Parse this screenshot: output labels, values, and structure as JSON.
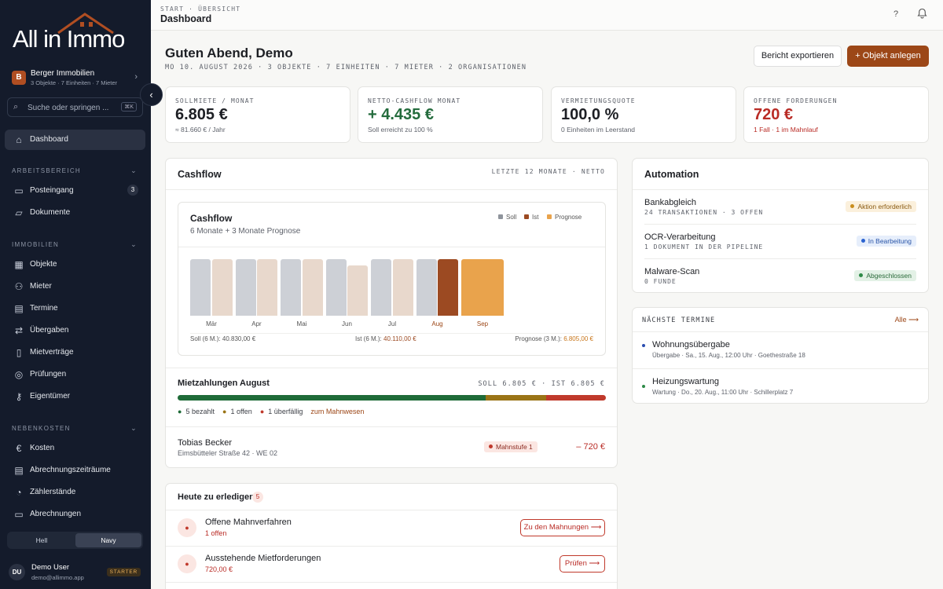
{
  "brand": {
    "logo_text": "All in Immo"
  },
  "org": {
    "initial": "B",
    "name": "Berger Immobilien",
    "summary": "3 Objekte · 7 Einheiten · 7 Mieter"
  },
  "search": {
    "placeholder": "Suche oder springen ...",
    "shortcut": "⌘K"
  },
  "nav": {
    "dashboard": "Dashboard",
    "sec_work": "ARBEITSBEREICH",
    "posteingang": "Posteingang",
    "posteingang_count": "3",
    "dokumente": "Dokumente",
    "sec_immo": "IMMOBILIEN",
    "objekte": "Objekte",
    "mieter": "Mieter",
    "termine": "Termine",
    "uebergaben": "Übergaben",
    "mietvertraege": "Mietverträge",
    "pruefungen": "Prüfungen",
    "eigentuemer": "Eigentümer",
    "sec_nk": "NEBENKOSTEN",
    "kosten": "Kosten",
    "zeitraeume": "Abrechnungszeiträume",
    "zaehler": "Zählerstände",
    "abrechnungen": "Abrechnungen"
  },
  "theme": {
    "light": "Hell",
    "navy": "Navy"
  },
  "user": {
    "initials": "DU",
    "name": "Demo User",
    "email": "demo@allimmo.app",
    "plan": "STARTER"
  },
  "header": {
    "breadcrumb": "START · ÜBERSICHT",
    "title": "Dashboard",
    "help": "?"
  },
  "greeting": {
    "title": "Guten Abend, Demo",
    "meta": "MO 10. AUGUST 2026 · 3 OBJEKTE · 7 EINHEITEN · 7 MIETER · 2 ORGANISATIONEN"
  },
  "actions": {
    "export": "Bericht exportieren",
    "add": "+ Objekt anlegen"
  },
  "kpis": [
    {
      "label": "SOLLMIETE / MONAT",
      "value": "6.805 €",
      "sub": "≈ 81.660 € / Jahr",
      "color": "#1d1f24",
      "subcolor": "#5e626b"
    },
    {
      "label": "NETTO-CASHFLOW MONAT",
      "value": "+ 4.435 €",
      "sub": "Soll erreicht zu 100 %",
      "color": "#236b3c",
      "subcolor": "#5e626b"
    },
    {
      "label": "VERMIETUNGSQUOTE",
      "value": "100,0 %",
      "sub": "0 Einheiten im Leerstand",
      "color": "#1d1f24",
      "subcolor": "#5e626b"
    },
    {
      "label": "OFFENE FORDERUNGEN",
      "value": "720 €",
      "sub": "1 Fall · 1 im Mahnlauf",
      "color": "#b92b25",
      "subcolor": "#b92b25"
    }
  ],
  "cashflow": {
    "title": "Cashflow",
    "range": "LETZTE 12 MONATE · NETTO",
    "inner_title": "Cashflow",
    "inner_sub": "6 Monate + 3 Monate Prognose",
    "legend": {
      "soll": "Soll",
      "ist": "Ist",
      "prognose": "Prognose"
    },
    "foot_soll_label": "Soll (6 M.): ",
    "foot_soll": "40.830,00 €",
    "foot_ist_label": "Ist (6 M.): ",
    "foot_ist": "40.110,00 €",
    "foot_prog_label": "Prognose (3 M.): ",
    "foot_prog": "6.805,00 €"
  },
  "chart_data": {
    "type": "bar",
    "categories": [
      "Mär",
      "Apr",
      "Mai",
      "Jun",
      "Jul",
      "Aug",
      "Sep"
    ],
    "series": [
      {
        "name": "Soll",
        "values": [
          6805,
          6805,
          6805,
          6805,
          6805,
          6805,
          null
        ],
        "color": "#cdd0d6"
      },
      {
        "name": "Ist",
        "values": [
          6805,
          6805,
          6805,
          6085,
          6805,
          6805,
          null
        ],
        "color": "#e8d8cc"
      },
      {
        "name": "Prognose",
        "values": [
          null,
          null,
          null,
          null,
          null,
          null,
          6805
        ],
        "color": "#e9a34c"
      }
    ],
    "highlight": {
      "category": "Aug",
      "ist_color": "#9c4a22"
    }
  },
  "payments": {
    "title": "Mietzahlungen August",
    "totals": "SOLL 6.805 € · IST 6.805 €",
    "paid_share": 0.72,
    "open_share": 0.14,
    "overdue_share": 0.14,
    "paid": "5 bezahlt",
    "open": "1 offen",
    "overdue": "1 überfällig",
    "link": "zum Mahnwesen"
  },
  "overdue_row": {
    "name": "Tobias Becker",
    "address": "Eimsbütteler Straße 42 · WE 02",
    "badge": "Mahnstufe 1",
    "amount": "– 720 €"
  },
  "todo": {
    "title": "Heute zu erledigen",
    "count": "5",
    "items": [
      {
        "title": "Offene Mahnverfahren",
        "sub": "1 offen",
        "button": "Zu den Mahnungen ⟶"
      },
      {
        "title": "Ausstehende Mietforderungen",
        "sub": "720,00 €",
        "button": "Prüfen ⟶"
      }
    ]
  },
  "automation": {
    "title": "Automation",
    "items": [
      {
        "name": "Bankabgleich",
        "detail": "24 TRANSAKTIONEN · 3 OFFEN",
        "status": "Aktion erforderlich",
        "bg": "#fbf0dc",
        "fg": "#8a5a10",
        "dot": "#c98d1d"
      },
      {
        "name": "OCR-Verarbeitung",
        "detail": "1 DOKUMENT IN DER PIPELINE",
        "status": "In Bearbeitung",
        "bg": "#e6eefb",
        "fg": "#2a55a8",
        "dot": "#2a62d0"
      },
      {
        "name": "Malware-Scan",
        "detail": "0 FUNDE",
        "status": "Abgeschlossen",
        "bg": "#e3f1e6",
        "fg": "#2a6a3a",
        "dot": "#2d8a47"
      }
    ]
  },
  "termine": {
    "title": "NÄCHSTE TERMINE",
    "all": "Alle ⟶",
    "items": [
      {
        "title": "Wohnungsübergabe",
        "detail": "Übergabe · Sa., 15. Aug., 12:00 Uhr · Goethestraße 18",
        "dot": "#2a4db0"
      },
      {
        "title": "Heizungswartung",
        "detail": "Wartung · Do., 20. Aug., 11:00 Uhr · Schillerplatz 7",
        "dot": "#2d8a47"
      }
    ]
  }
}
